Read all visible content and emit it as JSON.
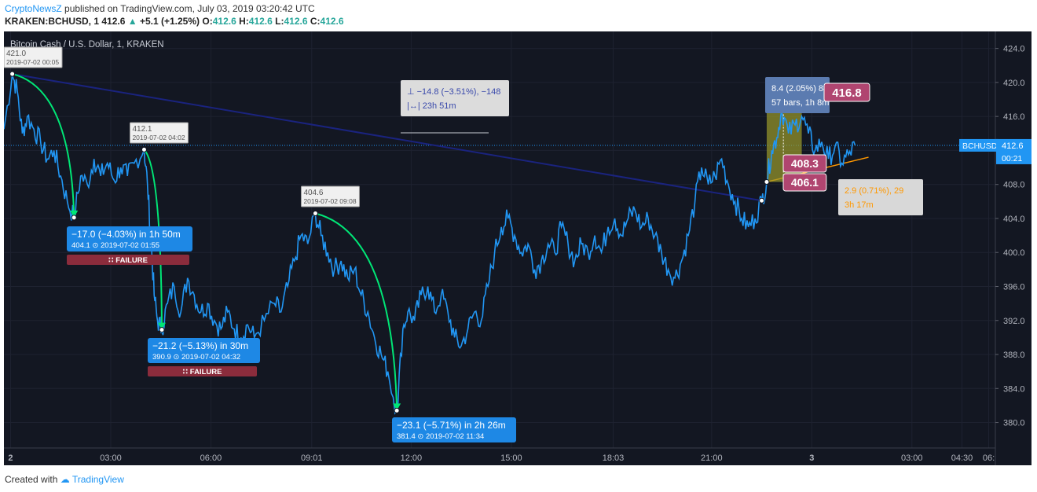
{
  "header": {
    "author": "CryptoNewsZ",
    "published": "published on TradingView.com, July 03, 2019 03:20:42 UTC",
    "symbol": "KRAKEN:BCHUSD, 1",
    "price": "412.6",
    "change": "+5.1 (+1.25%)",
    "o_label": "O:",
    "o_value": "412.6",
    "h_label": "H:",
    "h_value": "412.6",
    "l_label": "L:",
    "l_value": "412.6",
    "c_label": "C:",
    "c_value": "412.6"
  },
  "footer": {
    "created_with": "Created with",
    "brand": "TradingView"
  },
  "colors": {
    "background": "#131722",
    "price_line": "#2196f3",
    "trend_line": "#1a237e",
    "green_arrow": "#00e676",
    "orange_line": "#ff9800",
    "failure": "#8b2c3c",
    "label_pink": "#b04570",
    "label_blue": "#2962ff",
    "range_box": "#9b9b2b"
  },
  "chart_data": {
    "type": "line",
    "title": "Bitcoin Cash / U.S. Dollar, 1, KRAKEN",
    "symbol_tag": "BCHUSD",
    "last_price": "412.6",
    "countdown": "00:21",
    "ylim": [
      377,
      426
    ],
    "yticks": [
      "424.0",
      "420.0",
      "416.0",
      "412.0",
      "408.0",
      "404.0",
      "400.0",
      "396.0",
      "392.0",
      "388.0",
      "384.0",
      "380.0"
    ],
    "xlim_hours": [
      -0.2,
      29.5
    ],
    "xticks": [
      {
        "h": 0,
        "label": "2"
      },
      {
        "h": 3,
        "label": "03:00"
      },
      {
        "h": 6,
        "label": "06:00"
      },
      {
        "h": 9.02,
        "label": "09:01"
      },
      {
        "h": 12,
        "label": "12:00"
      },
      {
        "h": 15,
        "label": "15:00"
      },
      {
        "h": 18.05,
        "label": "18:03"
      },
      {
        "h": 21,
        "label": "21:00"
      },
      {
        "h": 24,
        "label": "3"
      },
      {
        "h": 27,
        "label": "03:00"
      },
      {
        "h": 28.5,
        "label": "04:30"
      },
      {
        "h": 29.3,
        "label": "06:"
      }
    ],
    "series": [
      {
        "points": [
          [
            -0.2,
            414.5
          ],
          [
            0.05,
            421.0
          ],
          [
            0.2,
            419
          ],
          [
            0.35,
            414
          ],
          [
            0.5,
            416
          ],
          [
            0.7,
            414.5
          ],
          [
            0.9,
            413
          ],
          [
            1.1,
            411
          ],
          [
            1.3,
            412
          ],
          [
            1.5,
            409
          ],
          [
            1.7,
            406
          ],
          [
            1.9,
            404.1
          ],
          [
            2.1,
            409
          ],
          [
            2.3,
            408
          ],
          [
            2.5,
            411
          ],
          [
            2.7,
            409
          ],
          [
            2.9,
            410.5
          ],
          [
            3.1,
            408.5
          ],
          [
            3.3,
            410
          ],
          [
            3.5,
            409
          ],
          [
            3.7,
            410.5
          ],
          [
            4.0,
            412.1
          ],
          [
            4.1,
            408
          ],
          [
            4.2,
            402
          ],
          [
            4.3,
            395
          ],
          [
            4.4,
            392
          ],
          [
            4.53,
            390.9
          ],
          [
            4.7,
            394
          ],
          [
            4.9,
            396
          ],
          [
            5.1,
            393
          ],
          [
            5.3,
            397
          ],
          [
            5.5,
            395
          ],
          [
            5.7,
            393
          ],
          [
            5.9,
            394
          ],
          [
            6.1,
            392
          ],
          [
            6.3,
            391
          ],
          [
            6.5,
            393
          ],
          [
            6.7,
            391
          ],
          [
            6.9,
            390
          ],
          [
            7.1,
            391.5
          ],
          [
            7.3,
            390
          ],
          [
            7.6,
            392
          ],
          [
            7.9,
            394
          ],
          [
            8.1,
            393
          ],
          [
            8.3,
            396
          ],
          [
            8.5,
            399
          ],
          [
            8.7,
            402
          ],
          [
            8.9,
            401
          ],
          [
            9.13,
            404.6
          ],
          [
            9.3,
            402
          ],
          [
            9.5,
            400
          ],
          [
            9.7,
            398
          ],
          [
            9.9,
            399
          ],
          [
            10.1,
            397
          ],
          [
            10.3,
            398
          ],
          [
            10.5,
            395
          ],
          [
            10.7,
            393
          ],
          [
            10.9,
            390
          ],
          [
            11.1,
            388
          ],
          [
            11.3,
            386
          ],
          [
            11.57,
            381.4
          ],
          [
            11.75,
            391
          ],
          [
            11.9,
            393
          ],
          [
            12.1,
            392
          ],
          [
            12.3,
            395
          ],
          [
            12.5,
            396
          ],
          [
            12.7,
            393
          ],
          [
            12.9,
            395
          ],
          [
            13.1,
            393
          ],
          [
            13.3,
            390
          ],
          [
            13.5,
            389
          ],
          [
            13.7,
            391
          ],
          [
            13.9,
            393
          ],
          [
            14.1,
            392
          ],
          [
            14.3,
            396
          ],
          [
            14.5,
            400
          ],
          [
            14.7,
            403
          ],
          [
            14.9,
            404
          ],
          [
            15.1,
            402
          ],
          [
            15.3,
            400
          ],
          [
            15.5,
            401
          ],
          [
            15.7,
            398
          ],
          [
            15.9,
            399
          ],
          [
            16.1,
            401
          ],
          [
            16.3,
            400
          ],
          [
            16.5,
            403
          ],
          [
            16.7,
            401
          ],
          [
            16.9,
            399
          ],
          [
            17.1,
            401
          ],
          [
            17.3,
            400
          ],
          [
            17.5,
            402
          ],
          [
            17.7,
            400
          ],
          [
            17.9,
            403
          ],
          [
            18.1,
            404
          ],
          [
            18.3,
            402
          ],
          [
            18.5,
            404
          ],
          [
            18.7,
            405
          ],
          [
            18.9,
            403
          ],
          [
            19.1,
            404
          ],
          [
            19.3,
            402
          ],
          [
            19.5,
            400
          ],
          [
            19.7,
            398
          ],
          [
            19.9,
            397
          ],
          [
            20.1,
            399
          ],
          [
            20.3,
            402
          ],
          [
            20.5,
            406
          ],
          [
            20.7,
            410
          ],
          [
            20.9,
            408
          ],
          [
            21.1,
            409
          ],
          [
            21.3,
            411
          ],
          [
            21.5,
            408
          ],
          [
            21.7,
            406
          ],
          [
            21.9,
            404
          ],
          [
            22.1,
            403
          ],
          [
            22.3,
            404
          ],
          [
            22.5,
            406.1
          ],
          [
            22.65,
            408.3
          ],
          [
            22.8,
            412
          ],
          [
            22.95,
            413.5
          ],
          [
            23.1,
            416.8
          ],
          [
            23.3,
            414
          ],
          [
            23.5,
            415
          ],
          [
            23.7,
            416
          ],
          [
            23.9,
            414
          ],
          [
            24.1,
            412
          ],
          [
            24.3,
            413
          ],
          [
            24.5,
            411
          ],
          [
            24.7,
            412.5
          ],
          [
            24.9,
            410.5
          ],
          [
            25.1,
            411.5
          ],
          [
            25.3,
            412.6
          ]
        ]
      }
    ],
    "annotations": [
      {
        "kind": "callout",
        "h": 0.05,
        "y": 421.0,
        "value": "421.0",
        "time": "2019-07-02 00:05"
      },
      {
        "kind": "callout",
        "h": 4.0,
        "y": 412.1,
        "value": "412.1",
        "time": "2019-07-02 04:02"
      },
      {
        "kind": "callout",
        "h": 9.13,
        "y": 404.6,
        "value": "404.6",
        "time": "2019-07-02 09:08"
      },
      {
        "kind": "drop",
        "line1": "−17.0 (−4.03%) in 1h 50m",
        "value": "404.1",
        "time": "2019-07-02  01:55",
        "failure": "FAILURE"
      },
      {
        "kind": "drop",
        "line1": "−21.2 (−5.13%) in 30m",
        "value": "390.9",
        "time": "2019-07-02  04:32",
        "failure": "FAILURE"
      },
      {
        "kind": "drop",
        "line1": "−23.1 (−5.71%) in 2h 26m",
        "value": "381.4",
        "time": "2019-07-02  11:34"
      },
      {
        "kind": "measure",
        "line1": "−14.8 (−3.51%), −148",
        "line2": "23h 51m"
      },
      {
        "kind": "measure",
        "line1": "8.4 (2.05%) 84",
        "line2": "57 bars, 1h 8m"
      },
      {
        "kind": "measure",
        "line1": "2.9 (0.71%), 29",
        "line2": "3h 17m"
      },
      {
        "kind": "price_label",
        "value": "416.8"
      },
      {
        "kind": "price_label",
        "value": "408.3"
      },
      {
        "kind": "price_label",
        "value": "406.1"
      }
    ]
  }
}
